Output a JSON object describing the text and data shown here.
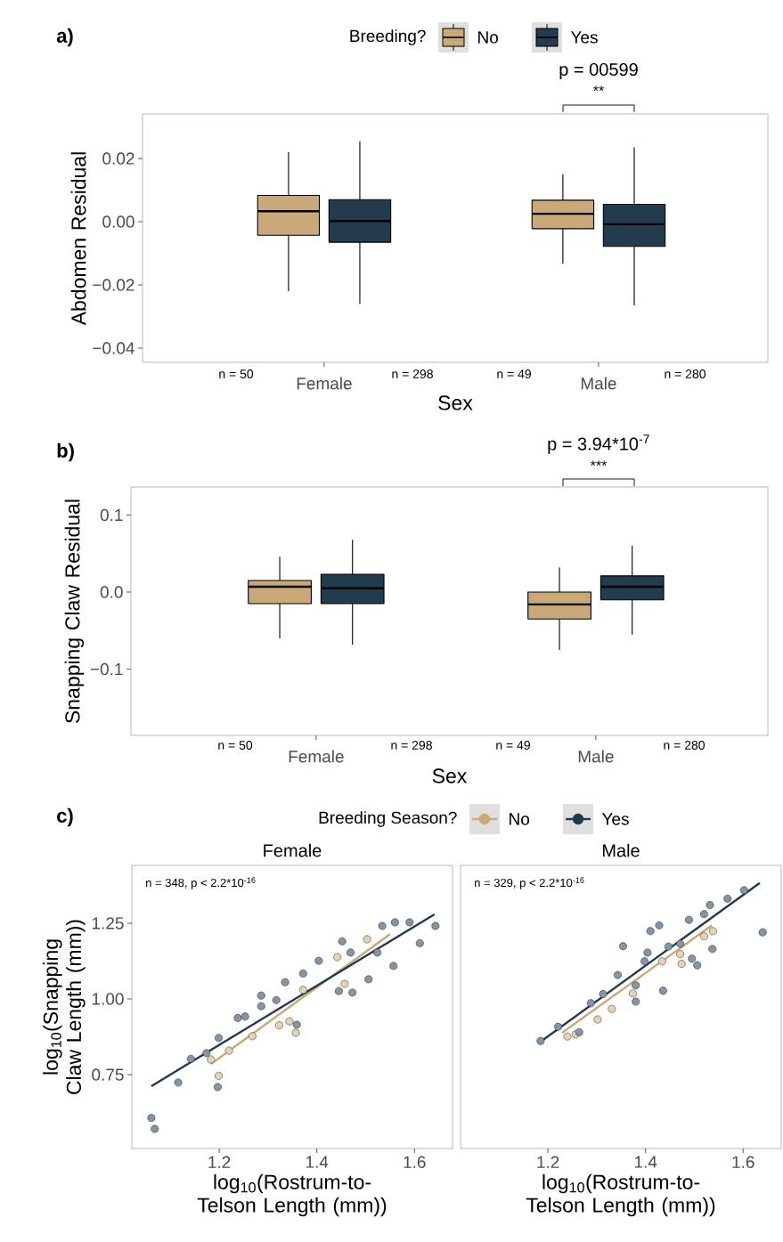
{
  "chart_data": [
    {
      "type": "box",
      "xlabel": "Sex",
      "ylabel": "Abdomen Residual",
      "legend_title": "Breeding?",
      "legend": "top",
      "categories": [
        "Female",
        "Male"
      ],
      "ylim": [
        -0.0445,
        0.0341
      ],
      "yticks": [
        {
          "value": -0.04,
          "label": "−0.04"
        },
        {
          "value": -0.02,
          "label": "−0.02"
        },
        {
          "value": 0,
          "label": "0.00"
        },
        0.02
      ],
      "series": [
        {
          "name": "No",
          "color": "#c9a97a",
          "boxes": [
            {
              "low": -0.022,
              "q1": -0.0043,
              "median": 0.0033,
              "q3": 0.0083,
              "high": 0.022
            },
            {
              "low": -0.0133,
              "q1": -0.0022,
              "median": 0.0025,
              "q3": 0.0068,
              "high": 0.015
            }
          ]
        },
        {
          "name": "Yes",
          "color": "#233c4d",
          "boxes": [
            {
              "low": -0.026,
              "q1": -0.0065,
              "median": 0.0002,
              "q3": 0.007,
              "high": 0.0255
            },
            {
              "low": -0.0265,
              "q1": -0.0078,
              "median": -0.0008,
              "q3": 0.0055,
              "high": 0.0235
            }
          ]
        }
      ],
      "annotations": [
        "a)",
        "n = 50",
        "n = 298",
        "n = 49",
        "n = 280",
        "p = 00599",
        "**"
      ]
    },
    {
      "type": "box",
      "xlabel": "Sex",
      "ylabel": "Snapping Claw Residual",
      "categories": [
        "Female",
        "Male"
      ],
      "ylim": [
        -0.186,
        0.1364
      ],
      "yticks": [
        {
          "value": -0.1,
          "label": "−0.1"
        },
        {
          "value": 0,
          "label": "0.0"
        },
        0.1
      ],
      "series": [
        {
          "color": "#c9a97a",
          "boxes": [
            {
              "low": -0.06,
              "q1": -0.015,
              "median": 0.007,
              "q3": 0.015,
              "high": 0.046
            },
            {
              "low": -0.075,
              "q1": -0.035,
              "median": -0.016,
              "q3": 0.0,
              "high": 0.032
            }
          ]
        },
        {
          "color": "#233c4d",
          "boxes": [
            {
              "low": -0.068,
              "q1": -0.015,
              "median": 0.005,
              "q3": 0.023,
              "high": 0.068
            },
            {
              "low": -0.055,
              "q1": -0.01,
              "median": 0.007,
              "q3": 0.021,
              "high": 0.06
            }
          ]
        }
      ],
      "annotations": [
        "b)",
        "n = 50",
        "n = 298",
        "n = 49",
        "n = 280",
        "p = 3.94*10$^{-7}$",
        "***"
      ]
    },
    {
      "type": "scatter",
      "title": "Female",
      "xlabel": "log$_{10}$(Rostrum-to-Telson Length (mm))",
      "ylabel": "log$_{10}$(Snapping Claw Length (mm))",
      "legend_title": "Breeding Season?",
      "legend": "top",
      "marker": "circle",
      "xlim": [
        1.021,
        1.678
      ],
      "ylim": [
        0.506,
        1.441
      ],
      "xticks": [
        1.2,
        1.4,
        1.6
      ],
      "yticks": [
        {
          "value": 0.75,
          "label": "0.75"
        },
        {
          "value": 1,
          "label": "1.00"
        },
        1.25
      ],
      "series": [
        {
          "type": "scatter",
          "color": "#e3d3b6",
          "x": [
            1.183,
            1.199,
            1.323,
            1.357,
            1.344,
            1.268,
            1.442,
            1.457,
            1.503,
            1.22,
            1.372
          ],
          "values": [
            0.8,
            0.746,
            0.913,
            0.888,
            0.926,
            0.877,
            1.138,
            1.05,
            1.197,
            0.829,
            1.03
          ]
        },
        {
          "type": "scatter",
          "color": "#8595a1",
          "x": [
            1.061,
            1.068,
            1.116,
            1.142,
            1.197,
            1.199,
            1.253,
            1.286,
            1.359,
            1.317,
            1.404,
            1.445,
            1.473,
            1.452,
            1.506,
            1.534,
            1.557,
            1.56,
            1.59,
            1.611,
            1.643,
            1.372,
            1.335,
            1.238,
            1.174,
            1.524,
            1.469,
            1.286
          ],
          "values": [
            0.607,
            0.571,
            0.724,
            0.802,
            0.709,
            0.871,
            0.942,
            1.011,
            0.915,
            0.996,
            1.126,
            1.026,
            1.021,
            1.19,
            1.065,
            1.241,
            1.109,
            1.253,
            1.253,
            1.184,
            1.241,
            1.084,
            1.055,
            0.937,
            0.821,
            1.153,
            1.153,
            0.976
          ]
        },
        {
          "type": "line",
          "marker": "none",
          "name": "No",
          "color": "#c8a878",
          "x": [
            1.183,
            1.55
          ],
          "values": [
            0.785,
            1.214
          ]
        },
        {
          "type": "line",
          "marker": "none",
          "name": "Yes",
          "color": "#22394a",
          "x": [
            1.061,
            1.641
          ],
          "values": [
            0.712,
            1.279
          ]
        }
      ],
      "annotations": [
        "c)",
        "n = 348, p < 2.2*10$^{-16}$"
      ]
    },
    {
      "type": "scatter",
      "title": "Male",
      "xlabel": "log$_{10}$(Rostrum-to-Telson Length (mm))",
      "marker": "circle",
      "tick_labels": "x",
      "xlim": [
        1.021,
        1.678
      ],
      "ylim": [
        0.506,
        1.441
      ],
      "xticks": [
        1.2,
        1.4,
        1.6
      ],
      "yticks": [
        {
          "value": 0.75,
          "label": null
        },
        {
          "value": 1,
          "label": null
        },
        {
          "value": 1.25,
          "label": null
        }
      ],
      "series": [
        {
          "type": "scatter",
          "color": "#e3d3b6",
          "x": [
            1.24,
            1.257,
            1.302,
            1.331,
            1.374,
            1.474,
            1.538,
            1.471,
            1.434,
            1.52
          ],
          "values": [
            0.876,
            0.883,
            0.932,
            0.967,
            1.018,
            1.116,
            1.224,
            1.148,
            1.124,
            1.207
          ]
        },
        {
          "type": "scatter",
          "color": "#8595a1",
          "x": [
            1.185,
            1.221,
            1.264,
            1.288,
            1.343,
            1.38,
            1.354,
            1.41,
            1.428,
            1.436,
            1.398,
            1.471,
            1.495,
            1.506,
            1.532,
            1.537,
            1.489,
            1.568,
            1.602,
            1.64,
            1.38,
            1.447,
            1.313,
            1.52,
            1.404
          ],
          "values": [
            0.861,
            0.908,
            0.89,
            0.986,
            1.079,
            0.991,
            1.174,
            1.224,
            1.243,
            1.027,
            1.124,
            1.182,
            1.133,
            1.111,
            1.31,
            1.165,
            1.261,
            1.331,
            1.359,
            1.22,
            1.045,
            1.173,
            1.016,
            1.28,
            1.153
          ]
        },
        {
          "type": "line",
          "marker": "none",
          "color": "#c8a878",
          "x": [
            1.229,
            1.536
          ],
          "values": [
            0.888,
            1.243
          ]
        },
        {
          "type": "line",
          "marker": "none",
          "color": "#22394a",
          "x": [
            1.185,
            1.634
          ],
          "values": [
            0.859,
            1.383
          ]
        }
      ],
      "annotations": [
        "n = 329, p < 2.2*10$^{-16}$"
      ]
    }
  ]
}
